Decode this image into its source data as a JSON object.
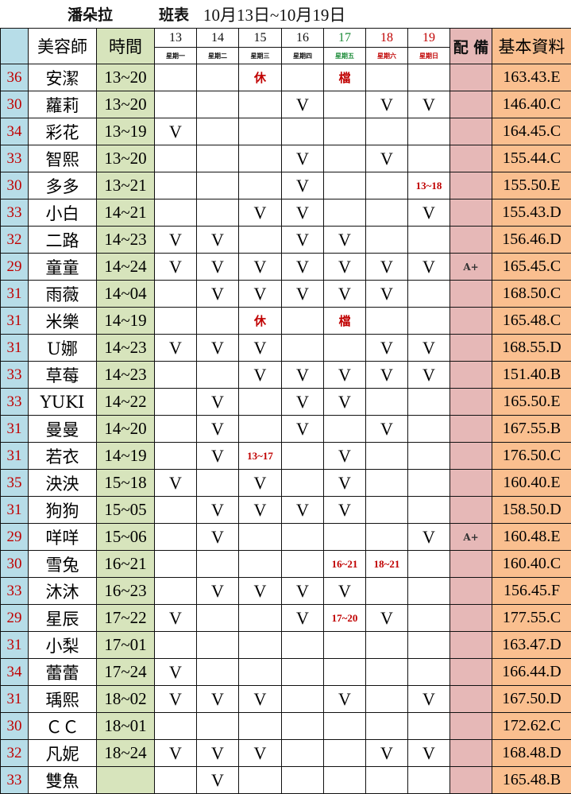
{
  "title": {
    "shop": "潘朵拉",
    "label": "班表",
    "range": "10月13日~10月19日"
  },
  "header": {
    "name": "美容師",
    "time": "時間",
    "equipment": "配 備",
    "info": "基本資料",
    "days": [
      {
        "d": "13",
        "w": "星期一",
        "color": "#111111"
      },
      {
        "d": "14",
        "w": "星期二",
        "color": "#111111"
      },
      {
        "d": "15",
        "w": "星期三",
        "color": "#111111"
      },
      {
        "d": "16",
        "w": "星期四",
        "color": "#111111"
      },
      {
        "d": "17",
        "w": "星期五",
        "color": "#1e8c3a"
      },
      {
        "d": "18",
        "w": "星期六",
        "color": "#c00000"
      },
      {
        "d": "19",
        "w": "星期日",
        "color": "#c00000"
      }
    ]
  },
  "rows": [
    {
      "num": "36",
      "name": "安潔",
      "time": "13~20",
      "days": [
        "",
        "",
        "休",
        "",
        "檔",
        "",
        ""
      ],
      "eq": "",
      "info": "163.43.E"
    },
    {
      "num": "30",
      "name": "蘿莉",
      "time": "13~20",
      "days": [
        "",
        "",
        "",
        "V",
        "",
        "V",
        "V"
      ],
      "eq": "",
      "info": "146.40.C"
    },
    {
      "num": "34",
      "name": "彩花",
      "time": "13~19",
      "days": [
        "V",
        "",
        "",
        "",
        "",
        "",
        ""
      ],
      "eq": "",
      "info": "164.45.C"
    },
    {
      "num": "33",
      "name": "智熙",
      "time": "13~20",
      "days": [
        "",
        "",
        "",
        "V",
        "",
        "V",
        ""
      ],
      "eq": "",
      "info": "155.44.C"
    },
    {
      "num": "30",
      "name": "多多",
      "time": "13~21",
      "days": [
        "",
        "",
        "",
        "V",
        "",
        "",
        "13~18"
      ],
      "eq": "",
      "info": "155.50.E"
    },
    {
      "num": "33",
      "name": "小白",
      "time": "14~21",
      "days": [
        "",
        "",
        "V",
        "V",
        "",
        "",
        "V"
      ],
      "eq": "",
      "info": "155.43.D"
    },
    {
      "num": "32",
      "name": "二路",
      "time": "14~23",
      "days": [
        "V",
        "V",
        "",
        "V",
        "V",
        "",
        ""
      ],
      "eq": "",
      "info": "156.46.D"
    },
    {
      "num": "29",
      "name": "童童",
      "time": "14~24",
      "days": [
        "V",
        "V",
        "V",
        "V",
        "V",
        "V",
        "V"
      ],
      "eq": "A+",
      "info": "165.45.C"
    },
    {
      "num": "31",
      "name": "雨薇",
      "time": "14~04",
      "days": [
        "",
        "V",
        "V",
        "V",
        "V",
        "V",
        ""
      ],
      "eq": "",
      "info": "168.50.C"
    },
    {
      "num": "31",
      "name": "米樂",
      "time": "14~19",
      "days": [
        "",
        "",
        "休",
        "",
        "檔",
        "",
        ""
      ],
      "eq": "",
      "info": "165.48.C"
    },
    {
      "num": "31",
      "name": "U娜",
      "time": "14~23",
      "days": [
        "V",
        "V",
        "V",
        "",
        "",
        "V",
        "V"
      ],
      "eq": "",
      "info": "168.55.D"
    },
    {
      "num": "33",
      "name": "草莓",
      "time": "14~23",
      "days": [
        "",
        "",
        "V",
        "V",
        "V",
        "V",
        "V"
      ],
      "eq": "",
      "info": "151.40.B"
    },
    {
      "num": "33",
      "name": "YUKI",
      "time": "14~22",
      "days": [
        "",
        "V",
        "",
        "V",
        "V",
        "",
        ""
      ],
      "eq": "",
      "info": "165.50.E"
    },
    {
      "num": "31",
      "name": "曼曼",
      "time": "14~20",
      "days": [
        "",
        "V",
        "",
        "V",
        "",
        "V",
        ""
      ],
      "eq": "",
      "info": "167.55.B"
    },
    {
      "num": "31",
      "name": "若衣",
      "time": "14~19",
      "days": [
        "",
        "V",
        "13~17",
        "",
        "V",
        "",
        ""
      ],
      "eq": "",
      "info": "176.50.C"
    },
    {
      "num": "35",
      "name": "泱泱",
      "time": "15~18",
      "days": [
        "V",
        "",
        "V",
        "",
        "V",
        "",
        ""
      ],
      "eq": "",
      "info": "160.40.E"
    },
    {
      "num": "31",
      "name": "狗狗",
      "time": "15~05",
      "days": [
        "",
        "V",
        "V",
        "V",
        "V",
        "",
        ""
      ],
      "eq": "",
      "info": "158.50.D"
    },
    {
      "num": "29",
      "name": "咩咩",
      "time": "15~06",
      "days": [
        "",
        "V",
        "",
        "",
        "",
        "",
        "V"
      ],
      "eq": "A+",
      "info": "160.48.E"
    },
    {
      "num": "30",
      "name": "雪兔",
      "time": "16~21",
      "days": [
        "",
        "",
        "",
        "",
        "16~21",
        "18~21",
        ""
      ],
      "eq": "",
      "info": "160.40.C"
    },
    {
      "num": "33",
      "name": "沐沐",
      "time": "16~23",
      "days": [
        "",
        "V",
        "V",
        "V",
        "V",
        "",
        ""
      ],
      "eq": "",
      "info": "156.45.F"
    },
    {
      "num": "29",
      "name": "星辰",
      "time": "17~22",
      "days": [
        "V",
        "",
        "",
        "V",
        "17~20",
        "V",
        ""
      ],
      "eq": "",
      "info": "177.55.C"
    },
    {
      "num": "31",
      "name": "小梨",
      "time": "17~01",
      "days": [
        "",
        "",
        "",
        "",
        "",
        "",
        ""
      ],
      "eq": "",
      "info": "163.47.D"
    },
    {
      "num": "34",
      "name": "蕾蕾",
      "time": "17~24",
      "days": [
        "V",
        "",
        "",
        "",
        "",
        "",
        ""
      ],
      "eq": "",
      "info": "166.44.D"
    },
    {
      "num": "31",
      "name": "瑀熙",
      "time": "18~02",
      "days": [
        "V",
        "V",
        "V",
        "",
        "V",
        "",
        "V"
      ],
      "eq": "",
      "info": "167.50.D"
    },
    {
      "num": "30",
      "name": "ＣＣ",
      "time": "18~01",
      "days": [
        "",
        "",
        "",
        "",
        "",
        "",
        ""
      ],
      "eq": "",
      "info": "172.62.C"
    },
    {
      "num": "32",
      "name": "凡妮",
      "time": "18~24",
      "days": [
        "V",
        "V",
        "V",
        "",
        "",
        "V",
        "V"
      ],
      "eq": "",
      "info": "168.48.D"
    },
    {
      "num": "33",
      "name": "雙魚",
      "time": "",
      "days": [
        "",
        "V",
        "",
        "",
        "",
        "",
        ""
      ],
      "eq": "",
      "info": "165.48.B"
    }
  ]
}
